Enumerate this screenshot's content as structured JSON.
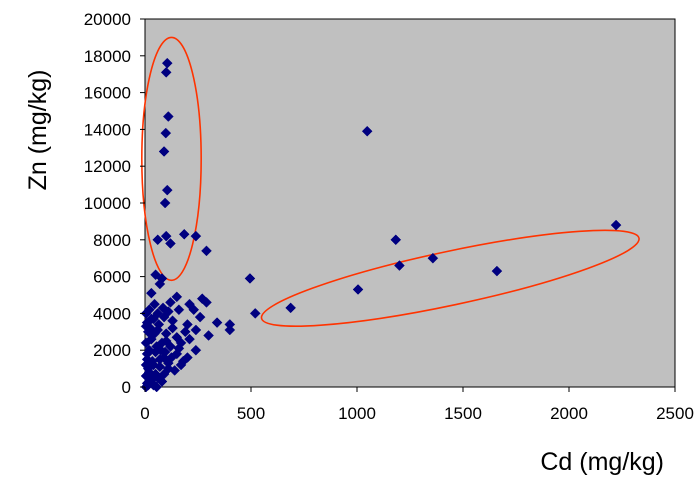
{
  "chart_data": {
    "type": "scatter",
    "title": "",
    "xlabel": "Cd (mg/kg)",
    "ylabel": "Zn (mg/kg)",
    "xlim": [
      0,
      2500
    ],
    "ylim": [
      0,
      20000
    ],
    "x_ticks": [
      0,
      500,
      1000,
      1500,
      2000,
      2500
    ],
    "y_ticks": [
      0,
      2000,
      4000,
      6000,
      8000,
      10000,
      12000,
      14000,
      16000,
      18000,
      20000
    ],
    "grid": false,
    "legend": "none",
    "colors": {
      "plot_background": "#c0c0c0",
      "marker": "#000080",
      "annotation": "#ff3300"
    },
    "series": [
      {
        "points": [
          [
            105,
            17600
          ],
          [
            100,
            17100
          ],
          [
            110,
            14700
          ],
          [
            98,
            13800
          ],
          [
            90,
            12800
          ],
          [
            105,
            10700
          ],
          [
            95,
            10000
          ],
          [
            1048,
            13900
          ],
          [
            2222,
            8800
          ],
          [
            1183,
            8000
          ],
          [
            1200,
            6600
          ],
          [
            1358,
            7000
          ],
          [
            1660,
            6300
          ],
          [
            1005,
            5300
          ],
          [
            687,
            4300
          ],
          [
            520,
            4000
          ],
          [
            495,
            5900
          ],
          [
            60,
            8000
          ],
          [
            100,
            8200
          ],
          [
            120,
            7800
          ],
          [
            185,
            8300
          ],
          [
            240,
            8200
          ],
          [
            290,
            7400
          ],
          [
            50,
            6100
          ],
          [
            80,
            5900
          ],
          [
            70,
            5600
          ],
          [
            30,
            5100
          ],
          [
            150,
            4900
          ],
          [
            270,
            4800
          ],
          [
            290,
            4600
          ],
          [
            210,
            4500
          ],
          [
            160,
            4200
          ],
          [
            110,
            4100
          ],
          [
            60,
            4000
          ],
          [
            20,
            4200
          ],
          [
            10,
            3500
          ],
          [
            40,
            3700
          ],
          [
            90,
            3800
          ],
          [
            130,
            3600
          ],
          [
            200,
            3400
          ],
          [
            240,
            3100
          ],
          [
            340,
            3500
          ],
          [
            400,
            3400
          ],
          [
            400,
            3100
          ],
          [
            300,
            2800
          ],
          [
            190,
            3000
          ],
          [
            150,
            2700
          ],
          [
            100,
            2900
          ],
          [
            60,
            3100
          ],
          [
            30,
            2600
          ],
          [
            80,
            2400
          ],
          [
            120,
            2200
          ],
          [
            170,
            2400
          ],
          [
            240,
            2000
          ],
          [
            200,
            1600
          ],
          [
            150,
            1800
          ],
          [
            90,
            1600
          ],
          [
            50,
            1900
          ],
          [
            20,
            2000
          ],
          [
            10,
            1500
          ],
          [
            40,
            1200
          ],
          [
            70,
            1100
          ],
          [
            110,
            1300
          ],
          [
            170,
            1200
          ],
          [
            140,
            900
          ],
          [
            90,
            700
          ],
          [
            60,
            500
          ],
          [
            30,
            400
          ],
          [
            10,
            200
          ],
          [
            40,
            100
          ],
          [
            20,
            800
          ],
          [
            80,
            300
          ],
          [
            110,
            1000
          ],
          [
            5,
            0
          ],
          [
            15,
            100
          ],
          [
            25,
            300
          ],
          [
            5,
            600
          ],
          [
            15,
            1000
          ],
          [
            35,
            1400
          ],
          [
            55,
            2200
          ],
          [
            5,
            2400
          ],
          [
            25,
            3200
          ],
          [
            45,
            2900
          ],
          [
            75,
            2000
          ],
          [
            100,
            2500
          ],
          [
            130,
            3200
          ],
          [
            65,
            3400
          ],
          [
            15,
            3000
          ],
          [
            30,
            3700
          ],
          [
            160,
            2100
          ],
          [
            180,
            1400
          ],
          [
            210,
            2600
          ],
          [
            260,
            3800
          ],
          [
            230,
            4200
          ],
          [
            120,
            4600
          ],
          [
            85,
            4300
          ],
          [
            45,
            4500
          ],
          [
            10,
            1800
          ],
          [
            50,
            700
          ],
          [
            70,
            1500
          ],
          [
            95,
            1900
          ],
          [
            125,
            1600
          ],
          [
            5,
            1200
          ],
          [
            20,
            600
          ],
          [
            35,
            200
          ],
          [
            55,
            0
          ],
          [
            5,
            3300
          ],
          [
            5,
            4000
          ]
        ]
      }
    ],
    "annotations": [
      {
        "shape": "ellipse",
        "center": [
          125,
          12400
        ],
        "radii": [
          140,
          6600
        ],
        "rotation_deg": 0
      },
      {
        "shape": "ellipse",
        "center": [
          1440,
          5910
        ],
        "radii": [
          910,
          1460
        ],
        "rotation_deg": -12
      }
    ]
  }
}
